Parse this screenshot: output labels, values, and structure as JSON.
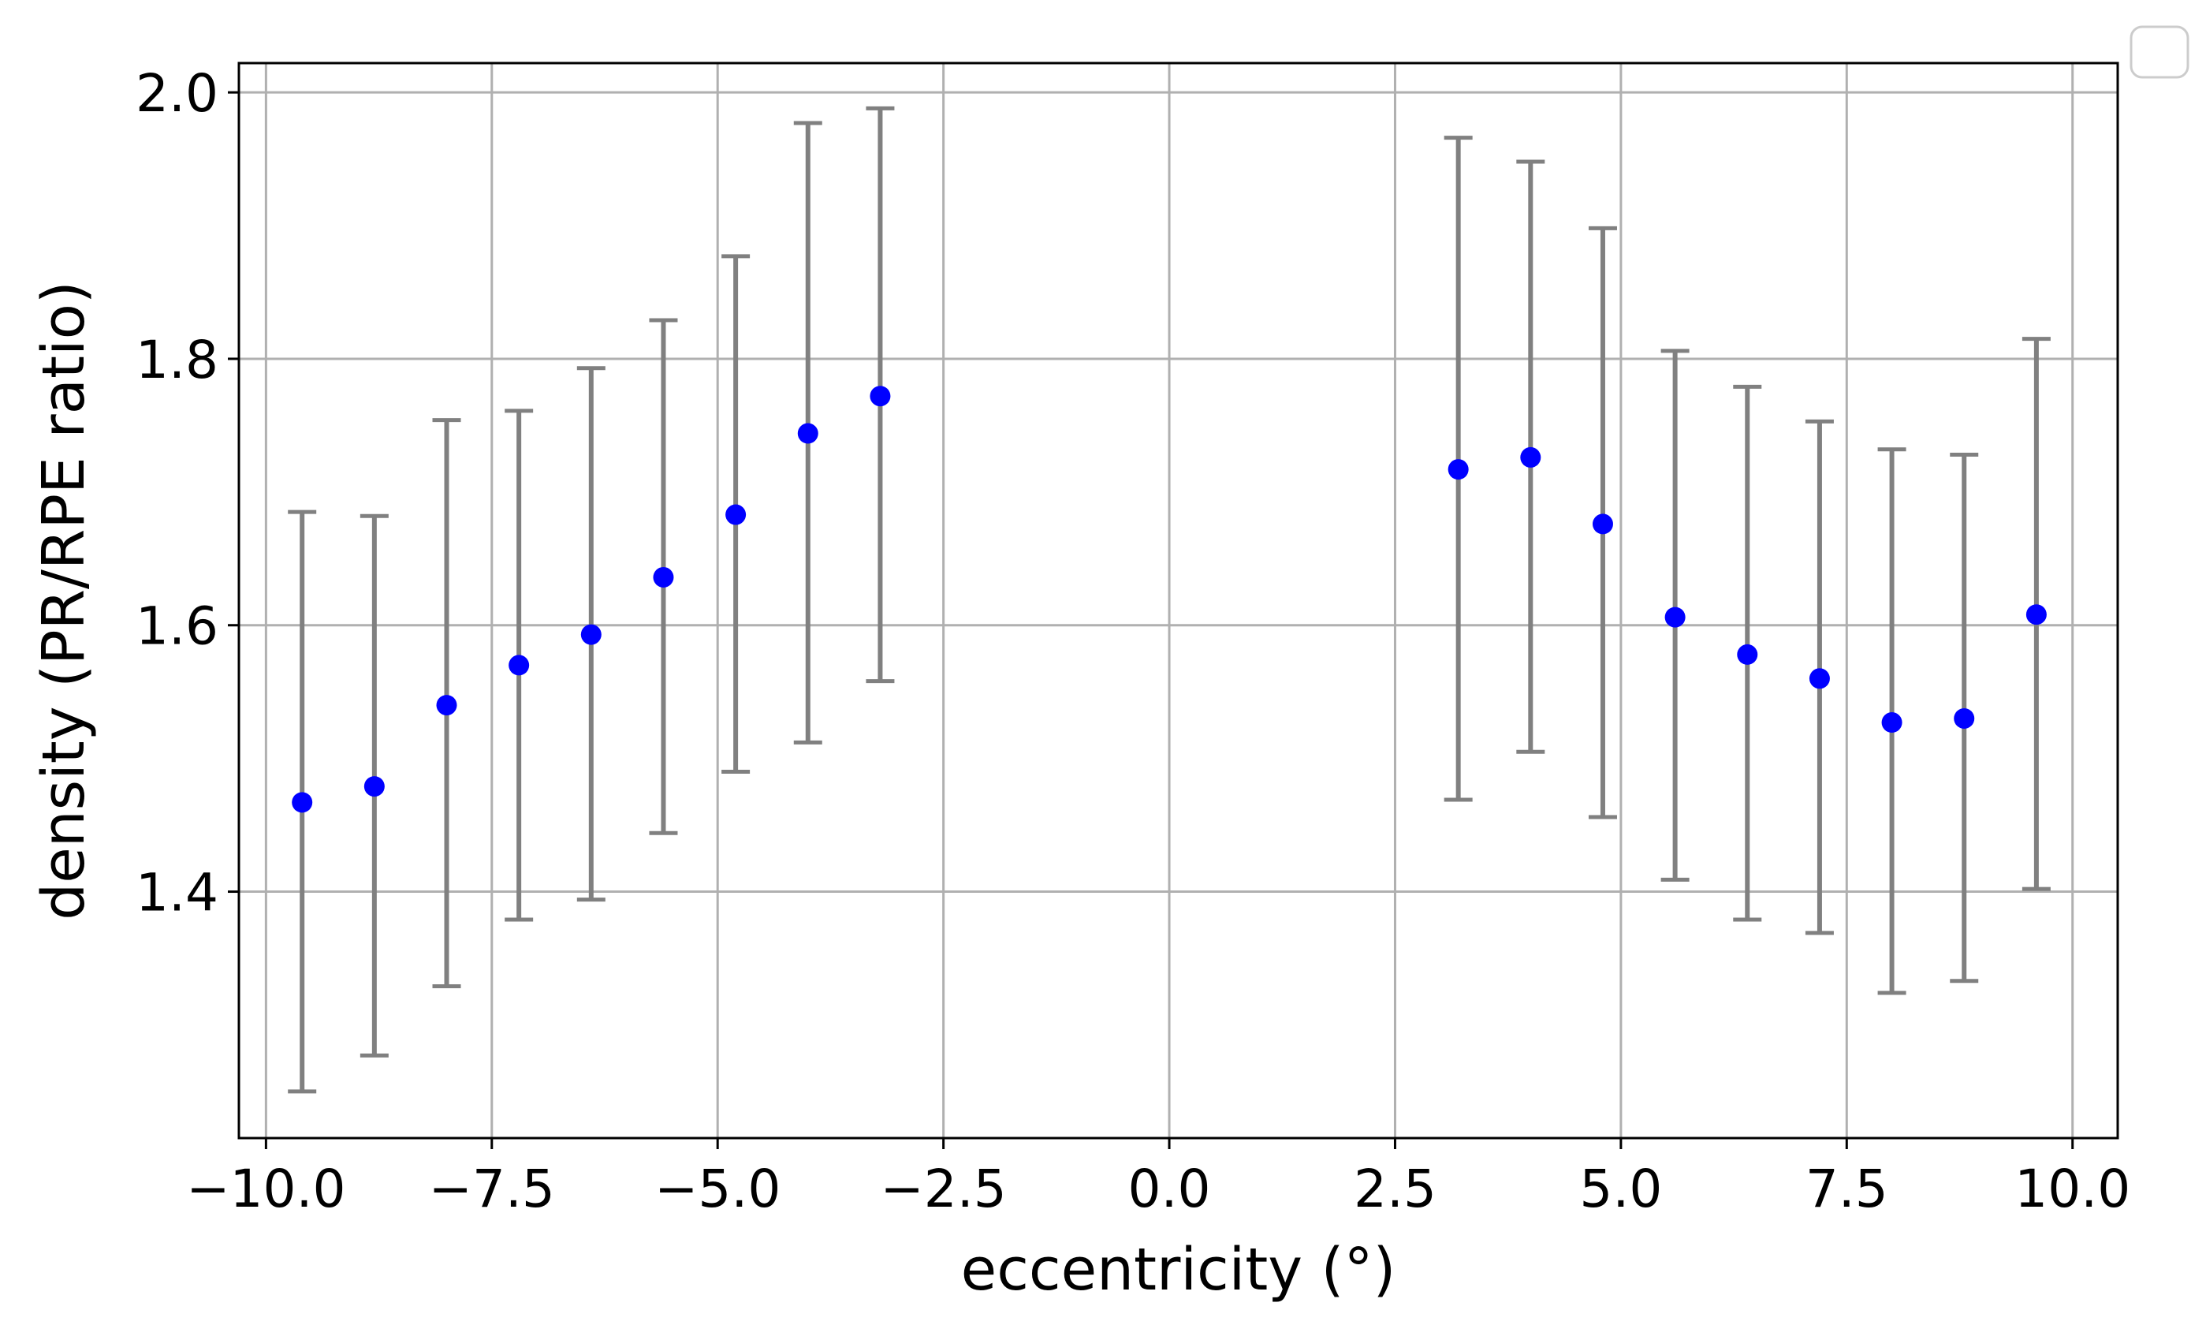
{
  "chart_data": {
    "type": "scatter",
    "title": "",
    "xlabel": "eccentricity (°)",
    "ylabel": "density (PR/RPE ratio)",
    "xlim": [
      -10.3,
      10.5
    ],
    "ylim": [
      1.215,
      2.022
    ],
    "xticks": [
      -10.0,
      -7.5,
      -5.0,
      -2.5,
      0.0,
      2.5,
      5.0,
      7.5,
      10.0
    ],
    "xtick_labels": [
      "−10.0",
      "−7.5",
      "−5.0",
      "−2.5",
      "0.0",
      "2.5",
      "5.0",
      "7.5",
      "10.0"
    ],
    "yticks": [
      1.4,
      1.6,
      1.8,
      2.0
    ],
    "ytick_labels": [
      "1.4",
      "1.6",
      "1.8",
      "2.0"
    ],
    "grid": true,
    "legend": {
      "placement": "upper-right, outside plot",
      "entries": []
    },
    "colors": {
      "marker": "#0000ff",
      "errorbar": "#808080",
      "grid": "#b0b0b0"
    },
    "series": [
      {
        "x": [
          -9.6,
          -8.8,
          -8.0,
          -7.2,
          -6.4,
          -5.6,
          -4.8,
          -4.0,
          -3.2,
          3.2,
          4.0,
          4.8,
          5.6,
          6.4,
          7.2,
          8.0,
          8.8,
          9.6
        ],
        "y": [
          1.467,
          1.479,
          1.54,
          1.57,
          1.593,
          1.636,
          1.683,
          1.744,
          1.772,
          1.717,
          1.726,
          1.676,
          1.606,
          1.578,
          1.56,
          1.527,
          1.53,
          1.608
        ],
        "yerr_low": [
          1.25,
          1.277,
          1.329,
          1.379,
          1.394,
          1.444,
          1.49,
          1.512,
          1.558,
          1.469,
          1.505,
          1.456,
          1.409,
          1.379,
          1.369,
          1.324,
          1.333,
          1.402
        ],
        "yerr_high": [
          1.685,
          1.682,
          1.754,
          1.761,
          1.793,
          1.829,
          1.877,
          1.977,
          1.988,
          1.966,
          1.948,
          1.898,
          1.806,
          1.779,
          1.753,
          1.732,
          1.728,
          1.815
        ]
      }
    ]
  }
}
